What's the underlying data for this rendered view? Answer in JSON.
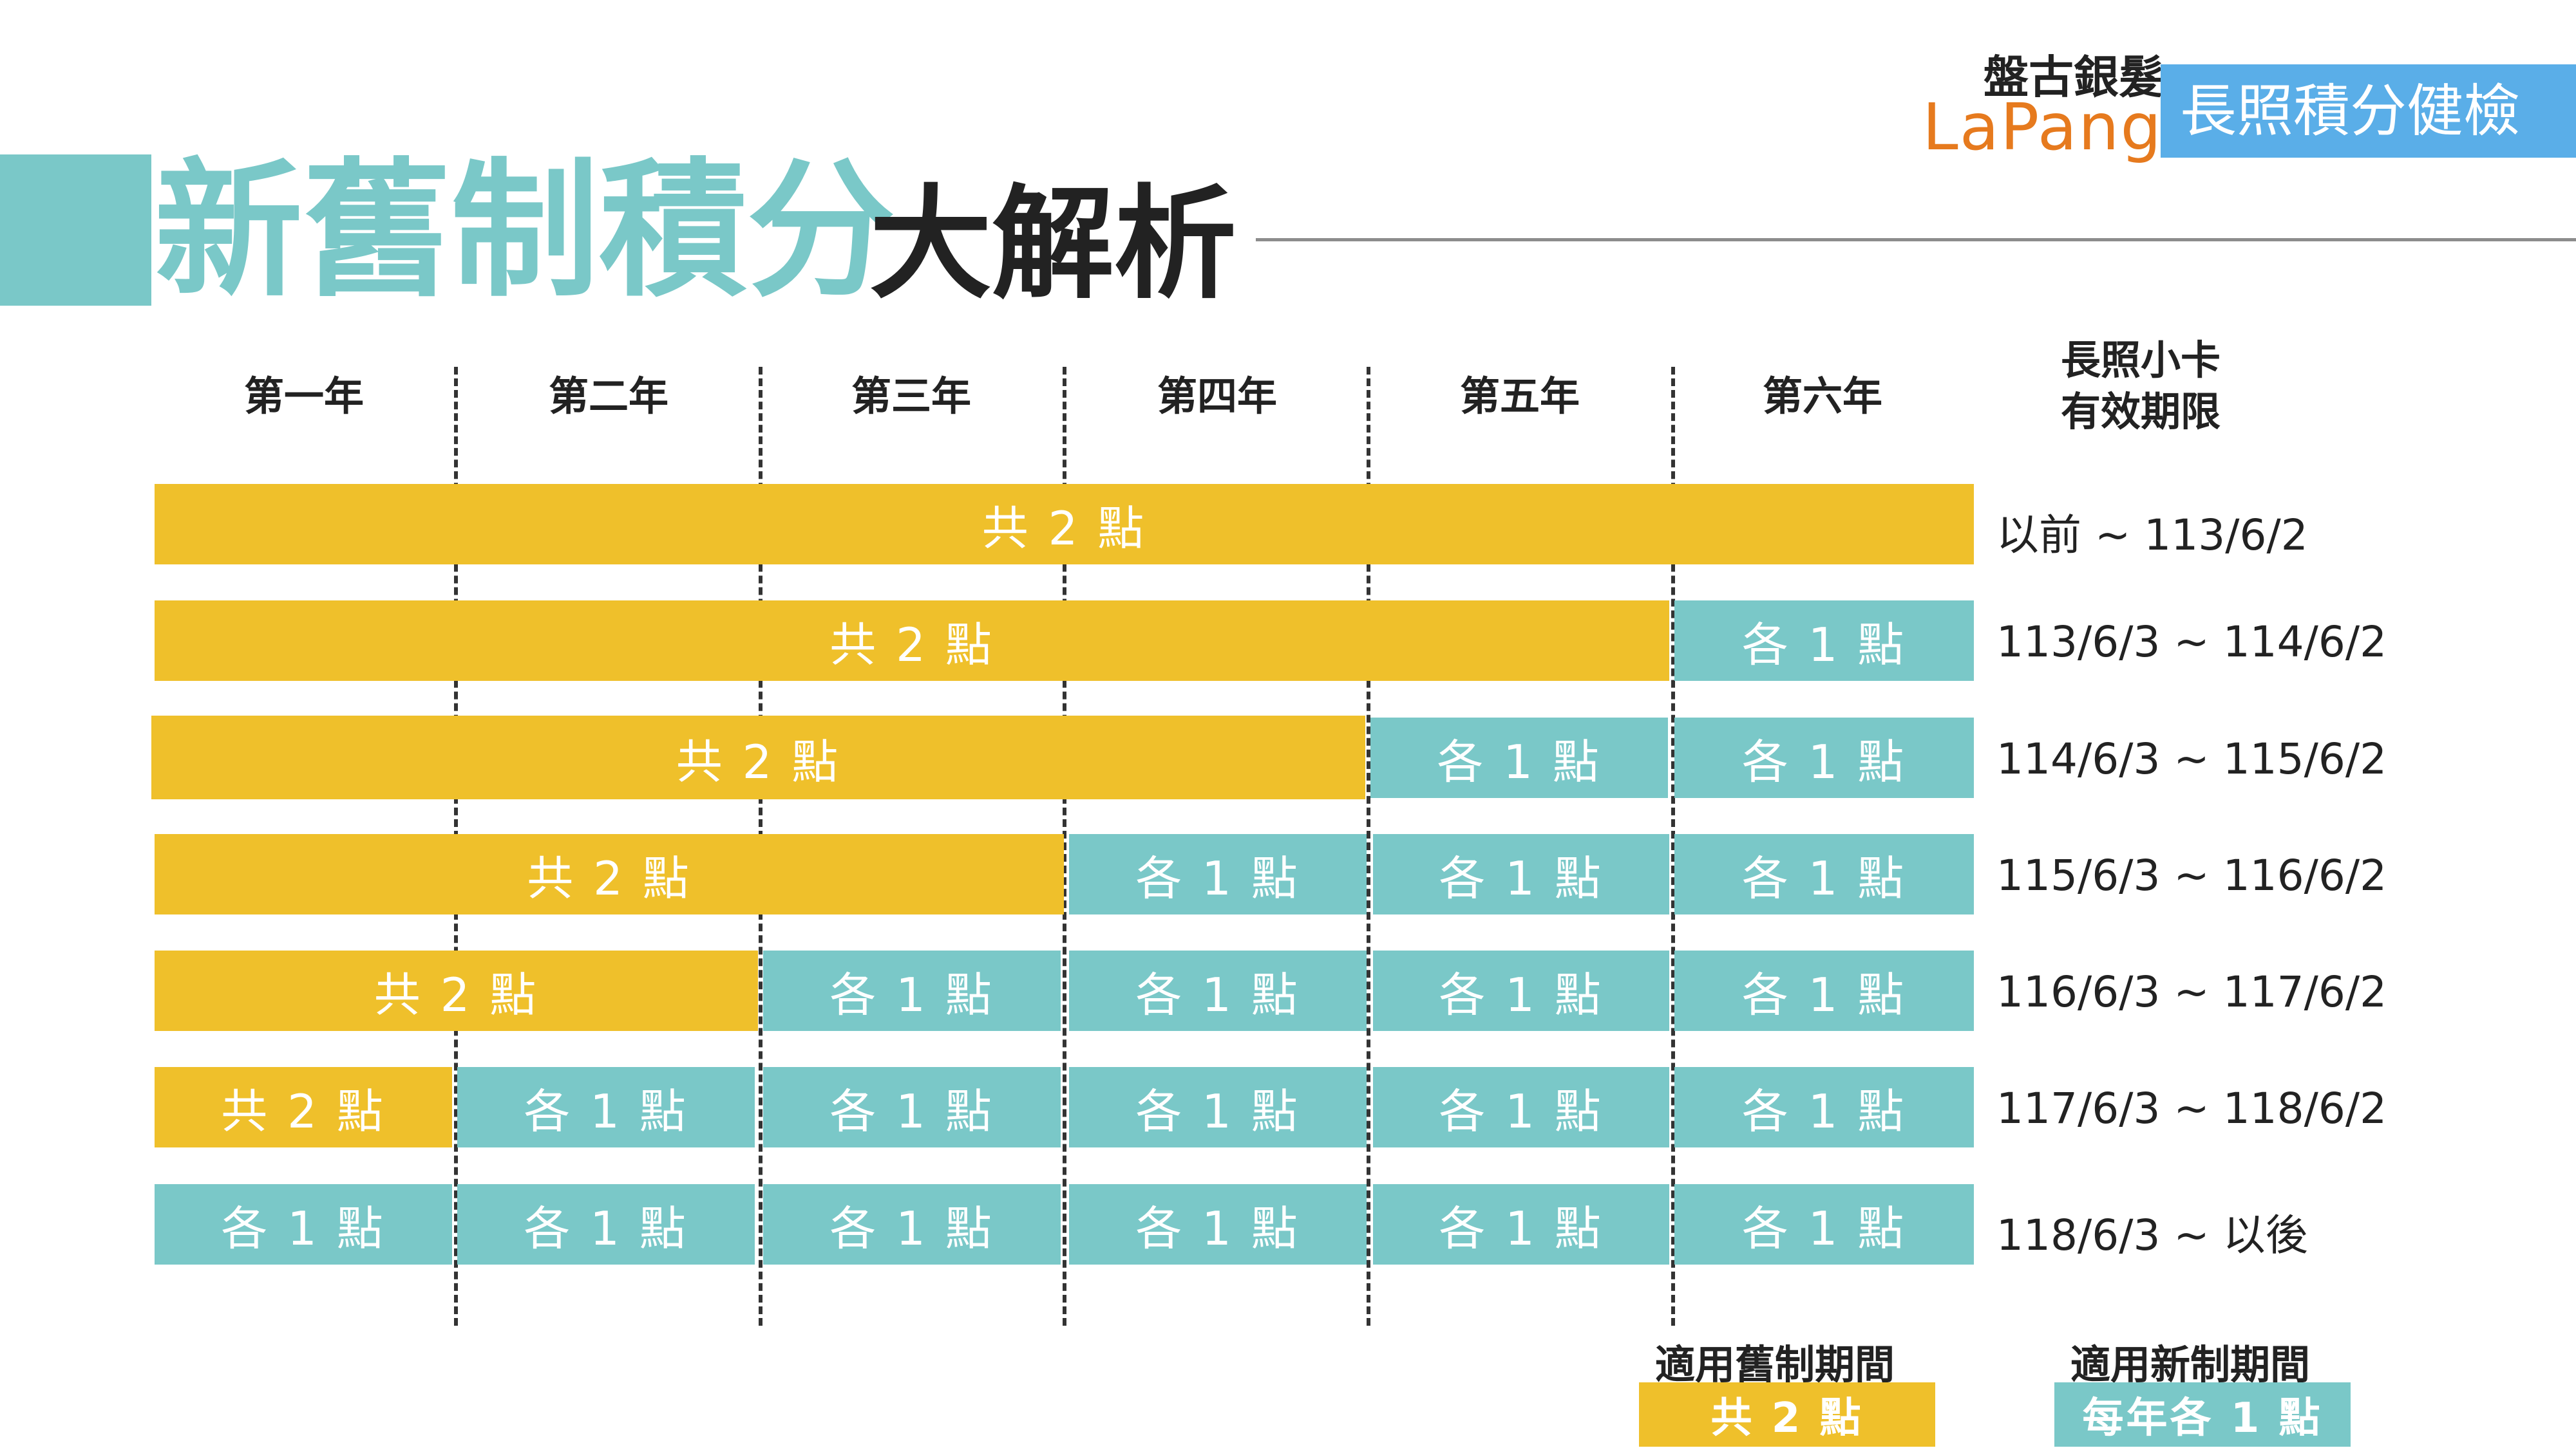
{
  "header": {
    "title_main": "新舊制積分",
    "title_sub": "大解析"
  },
  "brand": {
    "name_cn": "盤古銀髮",
    "name_en": "LaPangu",
    "badge": "長照積分健檢"
  },
  "columns": {
    "years": [
      "第一年",
      "第二年",
      "第三年",
      "第四年",
      "第五年",
      "第六年"
    ],
    "validity_header_line1": "長照小卡",
    "validity_header_line2": "有效期限"
  },
  "labels": {
    "shared": "共 2 點",
    "each": "各 1 點"
  },
  "rows": [
    {
      "shared_years": 6,
      "each_years": 0,
      "range": "以前 ~ 113/6/2"
    },
    {
      "shared_years": 5,
      "each_years": 1,
      "range": "113/6/3 ~ 114/6/2"
    },
    {
      "shared_years": 4,
      "each_years": 2,
      "range": "114/6/3 ~ 115/6/2"
    },
    {
      "shared_years": 3,
      "each_years": 3,
      "range": "115/6/3 ~ 116/6/2"
    },
    {
      "shared_years": 2,
      "each_years": 4,
      "range": "116/6/3 ~ 117/6/2"
    },
    {
      "shared_years": 1,
      "each_years": 5,
      "range": "117/6/3 ~ 118/6/2"
    },
    {
      "shared_years": 0,
      "each_years": 6,
      "range": "118/6/3 ~ 以後"
    }
  ],
  "legend": {
    "old_title": "適用舊制期間",
    "old_box": "共 2 點",
    "new_title": "適用新制期間",
    "new_box": "每年各 1 點"
  },
  "colors": {
    "old_system": "#efc02b",
    "new_system": "#7ac8c8",
    "badge": "#5aaee8",
    "brand_en": "#e67a1e"
  }
}
